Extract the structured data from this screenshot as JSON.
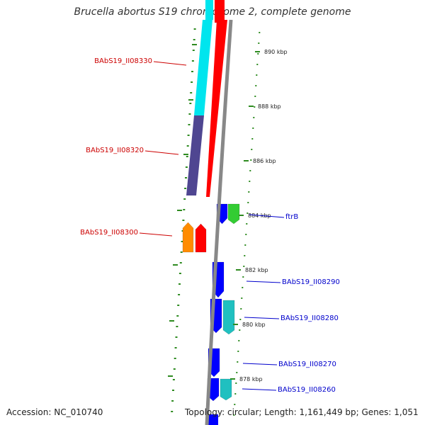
{
  "title": "Brucella abortus S19 chromosome 2, complete genome",
  "footer": {
    "accession": "Accession: NC_010740",
    "topology": "Topology: circular; Length: 1,161,449 bp; Genes: 1,051"
  },
  "colors": {
    "background": "#ffffff",
    "backbone": "#888888",
    "ticks": "#2e8b20",
    "reverse_label": "#cc0000",
    "forward_label": "#0000cc",
    "cyan": "#00e5ee",
    "red": "#ff0000",
    "navy": "#4f4691",
    "orange": "#ff8c00",
    "blue": "#0000ff",
    "green": "#33cc33",
    "teal": "#20c0c0"
  },
  "scale": {
    "unit": "kbp",
    "ticks": [
      {
        "label": "890 kbp"
      },
      {
        "label": "888 kbp"
      },
      {
        "label": "886 kbp"
      },
      {
        "label": "884 kbp"
      },
      {
        "label": "882 kbp"
      },
      {
        "label": "880 kbp"
      },
      {
        "label": "878 kbp"
      }
    ]
  },
  "gene_labels": [
    {
      "text": "BAbS19_II08330",
      "strand": "reverse"
    },
    {
      "text": "BAbS19_II08320",
      "strand": "reverse"
    },
    {
      "text": "BAbS19_II08300",
      "strand": "reverse"
    },
    {
      "text": "ftrB",
      "strand": "forward"
    },
    {
      "text": "BAbS19_II08290",
      "strand": "forward"
    },
    {
      "text": "BAbS19_II08280",
      "strand": "forward"
    },
    {
      "text": "BAbS19_II08270",
      "strand": "forward"
    },
    {
      "text": "BAbS19_II08260",
      "strand": "forward"
    }
  ]
}
